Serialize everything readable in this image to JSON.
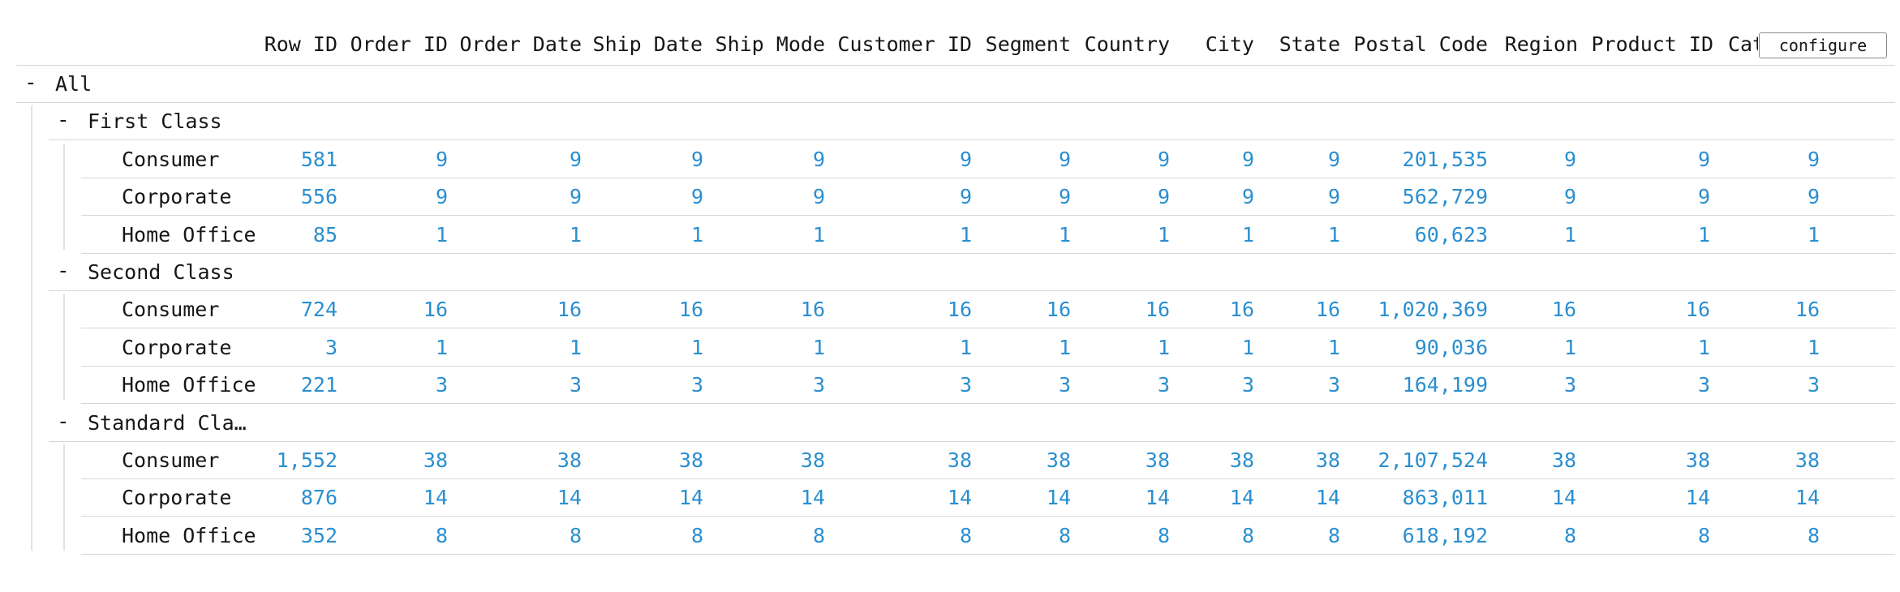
{
  "columns": [
    "Row ID",
    "Order ID",
    "Order Date",
    "Ship Date",
    "Ship Mode",
    "Customer ID",
    "Segment",
    "Country",
    "City",
    "State",
    "Postal Code",
    "Region",
    "Product ID",
    "Cate"
  ],
  "configure_label": "configure",
  "toggle_symbol": "-",
  "root": {
    "label": "All"
  },
  "groups": [
    {
      "label": "First Class",
      "rows": [
        {
          "label": "Consumer",
          "values": [
            "581",
            "9",
            "9",
            "9",
            "9",
            "9",
            "9",
            "9",
            "9",
            "9",
            "201,535",
            "9",
            "9",
            "9"
          ]
        },
        {
          "label": "Corporate",
          "values": [
            "556",
            "9",
            "9",
            "9",
            "9",
            "9",
            "9",
            "9",
            "9",
            "9",
            "562,729",
            "9",
            "9",
            "9"
          ]
        },
        {
          "label": "Home Office",
          "values": [
            "85",
            "1",
            "1",
            "1",
            "1",
            "1",
            "1",
            "1",
            "1",
            "1",
            "60,623",
            "1",
            "1",
            "1"
          ]
        }
      ]
    },
    {
      "label": "Second Class",
      "rows": [
        {
          "label": "Consumer",
          "values": [
            "724",
            "16",
            "16",
            "16",
            "16",
            "16",
            "16",
            "16",
            "16",
            "16",
            "1,020,369",
            "16",
            "16",
            "16"
          ]
        },
        {
          "label": "Corporate",
          "values": [
            "3",
            "1",
            "1",
            "1",
            "1",
            "1",
            "1",
            "1",
            "1",
            "1",
            "90,036",
            "1",
            "1",
            "1"
          ]
        },
        {
          "label": "Home Office",
          "values": [
            "221",
            "3",
            "3",
            "3",
            "3",
            "3",
            "3",
            "3",
            "3",
            "3",
            "164,199",
            "3",
            "3",
            "3"
          ]
        }
      ]
    },
    {
      "label": "Standard Cla…",
      "rows": [
        {
          "label": "Consumer",
          "values": [
            "1,552",
            "38",
            "38",
            "38",
            "38",
            "38",
            "38",
            "38",
            "38",
            "38",
            "2,107,524",
            "38",
            "38",
            "38"
          ]
        },
        {
          "label": "Corporate",
          "values": [
            "876",
            "14",
            "14",
            "14",
            "14",
            "14",
            "14",
            "14",
            "14",
            "14",
            "863,011",
            "14",
            "14",
            "14"
          ]
        },
        {
          "label": "Home Office",
          "values": [
            "352",
            "8",
            "8",
            "8",
            "8",
            "8",
            "8",
            "8",
            "8",
            "8",
            "618,192",
            "8",
            "8",
            "8"
          ]
        }
      ]
    }
  ],
  "colors": {
    "value_text": "#2a8fd0",
    "label_text": "#161616",
    "row_border": "#d6d6d6",
    "tree_line": "#e2e2e2"
  }
}
